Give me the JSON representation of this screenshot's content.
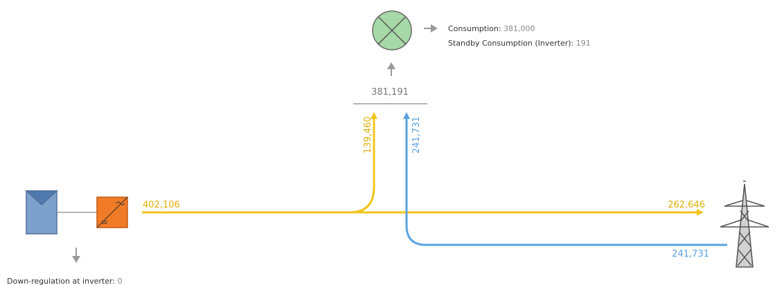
{
  "colors": {
    "solar_flow": "#f0c419",
    "grid_flow": "#5aa3e0",
    "inverter": "#f07b26",
    "pv_panel": "#7ea1cb",
    "consumer": "#a6d8a8",
    "neutral": "#9a9a9a"
  },
  "consumption": {
    "label": "Consumption:",
    "value": "381,000",
    "standby_label": "Standby Consumption (Inverter):",
    "standby_value": "191"
  },
  "load_total": "381,191",
  "flows": {
    "pv_output": "402,106",
    "to_load_from_pv": "139,460",
    "to_load_from_grid": "241,731",
    "feed_in": "262,646",
    "grid_purchase": "241,731"
  },
  "downregulation": {
    "label": "Down-regulation at inverter:",
    "value": "0"
  },
  "icons": {
    "pv": "solar-panel-icon",
    "inverter": "inverter-icon",
    "consumer": "lamp-icon",
    "grid": "power-pylon-icon"
  }
}
